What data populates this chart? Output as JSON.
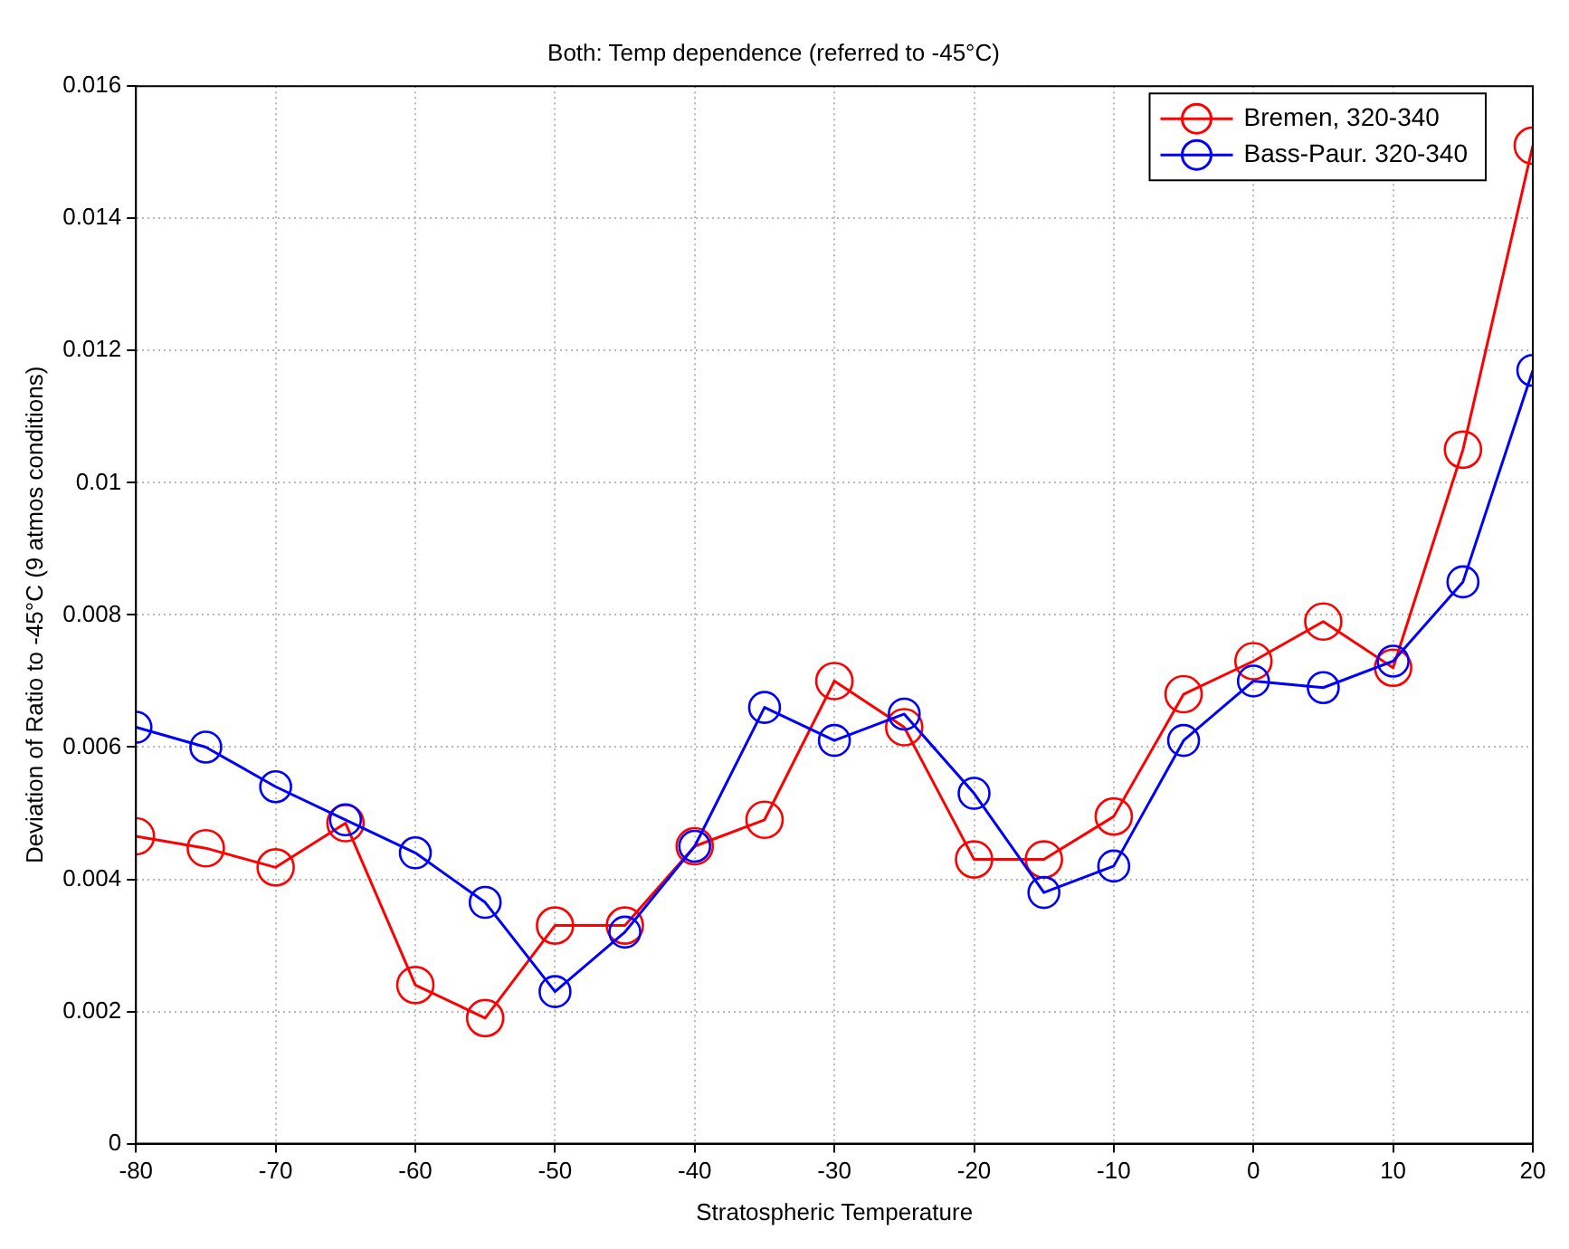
{
  "chart_data": {
    "type": "line",
    "title": "Both: Temp dependence (referred to -45°C)",
    "xlabel": "Stratospheric Temperature",
    "ylabel": "Deviation of Ratio to -45°C (9 atmos conditions)",
    "x": [
      -80,
      -75,
      -70,
      -65,
      -60,
      -55,
      -50,
      -45,
      -40,
      -35,
      -30,
      -25,
      -20,
      -15,
      -10,
      -5,
      0,
      5,
      10,
      15,
      20
    ],
    "series": [
      {
        "name": "Bremen, 320-340",
        "color": "#ff0000",
        "values": [
          0.00465,
          0.00447,
          0.00418,
          0.00485,
          0.0024,
          0.0019,
          0.0033,
          0.0033,
          0.0045,
          0.0049,
          0.007,
          0.0063,
          0.0043,
          0.0043,
          0.00495,
          0.0068,
          0.0073,
          0.0079,
          0.0072,
          0.0105,
          0.0151
        ]
      },
      {
        "name": "Bass-Paur. 320-340",
        "color": "#0000ff",
        "values": [
          0.0063,
          0.006,
          0.0054,
          0.0049,
          0.0044,
          0.00365,
          0.0023,
          0.0032,
          0.0045,
          0.0066,
          0.0061,
          0.0065,
          0.0053,
          0.0038,
          0.0042,
          0.0061,
          0.007,
          0.0069,
          0.0073,
          0.0085,
          0.0117
        ]
      }
    ],
    "xlim": [
      -80,
      20
    ],
    "xticks": [
      -80,
      -70,
      -60,
      -50,
      -40,
      -30,
      -20,
      -10,
      0,
      10,
      20
    ],
    "ylim": [
      0,
      0.016
    ],
    "yticks": [
      0,
      0.002,
      0.004,
      0.006,
      0.008,
      0.01,
      0.012,
      0.014,
      0.016
    ],
    "grid": true,
    "legend": "top right",
    "marker": "circle",
    "line_style": "solid"
  }
}
